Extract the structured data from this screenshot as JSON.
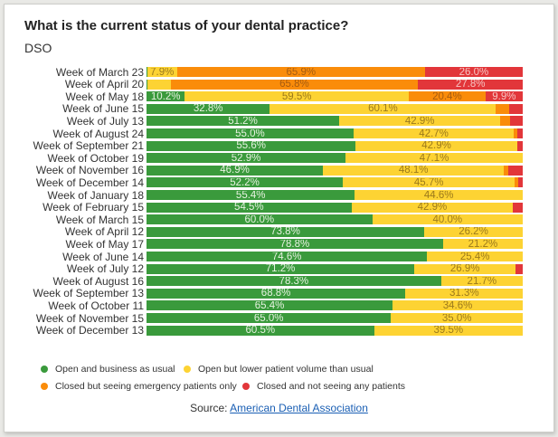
{
  "chart_data": {
    "type": "bar",
    "orientation": "horizontal",
    "stacked": "percent",
    "title": "What is the current status of your dental practice?",
    "subtitle": "DSO",
    "categories": [
      "Week of March 23",
      "Week of April 20",
      "Week of May 18",
      "Week of June 15",
      "Week of July 13",
      "Week of August 24",
      "Week of September 21",
      "Week of October 19",
      "Week of November 16",
      "Week of December 14",
      "Week of January 18",
      "Week of February 15",
      "Week of March 15",
      "Week of April 12",
      "Week of May 17",
      "Week of June 14",
      "Week of July 12",
      "Week of August 16",
      "Week of September 13",
      "Week of October 11",
      "Week of November 15",
      "Week of December 13"
    ],
    "series": [
      {
        "name": "Open and business as usual",
        "color": "#3a9a3c",
        "label_color": "#e6f2e0",
        "values": [
          0.2,
          0.3,
          10.2,
          32.8,
          51.2,
          55.0,
          55.6,
          52.9,
          46.9,
          52.2,
          55.4,
          54.5,
          60.0,
          73.8,
          78.8,
          74.6,
          71.2,
          78.3,
          68.8,
          65.4,
          65.0,
          60.5
        ],
        "labels": [
          "",
          "",
          "10.2%",
          "32.8%",
          "51.2%",
          "55.0%",
          "55.6%",
          "52.9%",
          "46.9%",
          "52.2%",
          "55.4%",
          "54.5%",
          "60.0%",
          "73.8%",
          "78.8%",
          "74.6%",
          "71.2%",
          "78.3%",
          "68.8%",
          "65.4%",
          "65.0%",
          "60.5%"
        ]
      },
      {
        "name": "Open but lower patient volume than usual",
        "color": "#fdd333",
        "label_color": "#9c7a1c",
        "values": [
          7.9,
          6.1,
          59.5,
          60.1,
          42.9,
          42.7,
          42.9,
          47.1,
          48.1,
          45.7,
          44.6,
          42.9,
          40.0,
          26.2,
          21.2,
          25.4,
          26.9,
          21.7,
          31.3,
          34.6,
          35.0,
          39.5
        ],
        "labels": [
          "7.9%",
          "",
          "59.5%",
          "60.1%",
          "42.9%",
          "42.7%",
          "42.9%",
          "47.1%",
          "48.1%",
          "45.7%",
          "44.6%",
          "42.9%",
          "40.0%",
          "26.2%",
          "21.2%",
          "25.4%",
          "26.9%",
          "21.7%",
          "31.3%",
          "34.6%",
          "35.0%",
          "39.5%"
        ]
      },
      {
        "name": "Closed but seeing emergency patients only",
        "color": "#fa8c0a",
        "label_color": "#a65c10",
        "values": [
          65.9,
          65.8,
          20.4,
          3.6,
          2.5,
          0.8,
          0,
          0,
          1.2,
          0.8,
          0,
          0,
          0,
          0,
          0,
          0,
          0,
          0,
          0,
          0,
          0,
          0
        ],
        "labels": [
          "65.9%",
          "65.8%",
          "20.4%",
          "",
          "",
          "",
          "",
          "",
          "",
          "",
          "",
          "",
          "",
          "",
          "",
          "",
          "",
          "",
          "",
          "",
          "",
          ""
        ]
      },
      {
        "name": "Closed and not seeing any patients",
        "color": "#e2363a",
        "label_color": "#f6c4c2",
        "values": [
          26.0,
          27.8,
          9.9,
          3.5,
          3.4,
          1.5,
          1.5,
          0,
          3.8,
          1.3,
          0,
          2.6,
          0,
          0,
          0,
          0,
          1.9,
          0,
          0,
          0,
          0,
          0
        ],
        "labels": [
          "26.0%",
          "27.8%",
          "9.9%",
          "",
          "",
          "",
          "",
          "",
          "",
          "",
          "",
          "",
          "",
          "",
          "",
          "",
          "",
          "",
          "",
          "",
          "",
          ""
        ]
      }
    ],
    "xlim": [
      0,
      100
    ],
    "grid": false,
    "legend_position": "bottom-left"
  },
  "source": {
    "prefix": "Source: ",
    "link_text": "American Dental Association"
  }
}
